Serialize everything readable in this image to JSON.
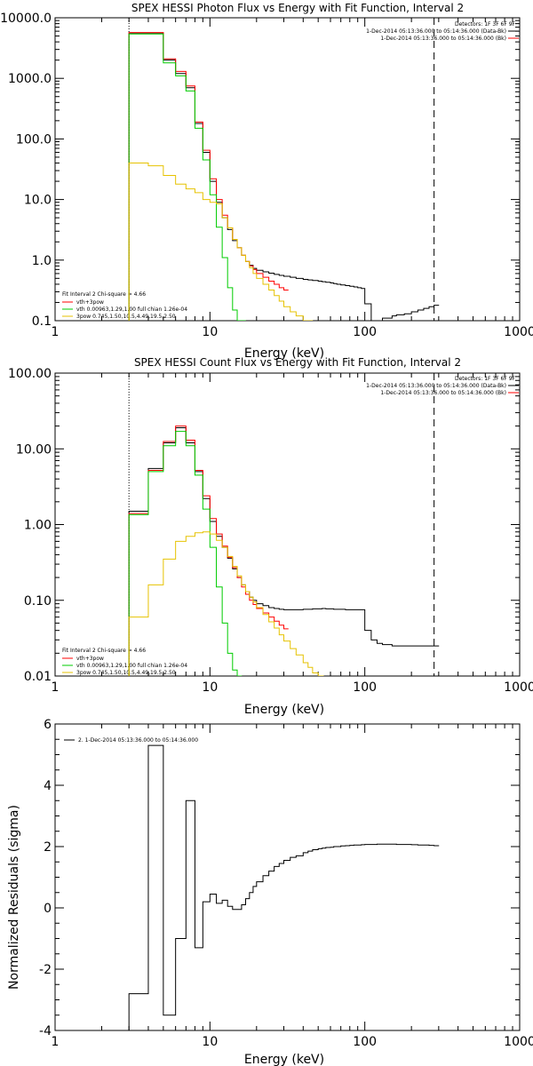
{
  "colors": {
    "background": "#ffffff",
    "axes": "#000000",
    "data": "#000000",
    "total": "#ff0000",
    "thermal": "#00cc00",
    "power_law": "#e6c200",
    "residuals": "#000000"
  },
  "chart_data": [
    {
      "type": "line",
      "title": "SPEX HESSI Photon Flux vs Energy with Fit Function, Interval 2",
      "xlabel": "Energy (keV)",
      "ylabel": "",
      "xscale": "log",
      "yscale": "log",
      "xlim": [
        1,
        1000
      ],
      "ylim": [
        0.1,
        10000
      ],
      "xticks": [
        1,
        10,
        100,
        1000
      ],
      "xtick_labels": [
        "1",
        "10",
        "100",
        "1000"
      ],
      "yticks": [
        0.1,
        1,
        10,
        100,
        1000,
        10000
      ],
      "ytick_labels": [
        "0.1",
        "1.0",
        "10.0",
        "100.0",
        "1000.0",
        "10000.0"
      ],
      "grid": false,
      "vlines": [
        {
          "x": 3,
          "style": "dotted"
        },
        {
          "x": 280,
          "style": "dashed"
        }
      ],
      "legend_topright": [
        "Detectors: 1F 3F 6F 9F",
        "1-Dec-2014 05:13:36.000 to 05:14:36.000 (Data-Bk)",
        "1-Dec-2014 05:13:36.000 to 05:14:36.000 (Bk)"
      ],
      "legend_bottomleft": [
        "Fit Interval 2   Chi-square = 4.66",
        "vth+3pow",
        "vth 0.00963,1.29,1.00  full chian 1.26e-04",
        "3pow 0.745,1.50,10.5,4.49,19.5,2.50"
      ],
      "series": [
        {
          "name": "data",
          "color": "#000000",
          "x": [
            3,
            4,
            5,
            6,
            7,
            8,
            9,
            10,
            11,
            12,
            13,
            14,
            15,
            16,
            17,
            18,
            19,
            20,
            22,
            24,
            26,
            28,
            30,
            33,
            36,
            40,
            43,
            46,
            50,
            53,
            56,
            60,
            63,
            66,
            70,
            75,
            80,
            85,
            90,
            95,
            100,
            110,
            120,
            130,
            140,
            150,
            160,
            180,
            200,
            220,
            240,
            260,
            280
          ],
          "y": [
            5600,
            5600,
            2000,
            1200,
            700,
            180,
            60,
            20,
            9,
            5,
            3.2,
            2.1,
            1.6,
            1.2,
            0.95,
            0.82,
            0.73,
            0.68,
            0.64,
            0.61,
            0.58,
            0.56,
            0.54,
            0.52,
            0.5,
            0.48,
            0.47,
            0.46,
            0.45,
            0.44,
            0.43,
            0.42,
            0.41,
            0.4,
            0.39,
            0.38,
            0.37,
            0.36,
            0.35,
            0.34,
            0.19,
            0.1,
            0.1,
            0.11,
            0.11,
            0.12,
            0.125,
            0.13,
            0.14,
            0.15,
            0.16,
            0.17,
            0.18
          ]
        },
        {
          "name": "vth+3pow",
          "color": "#ff0000",
          "x": [
            3,
            4,
            5,
            6,
            7,
            8,
            9,
            10,
            11,
            12,
            13,
            14,
            15,
            16,
            17,
            18,
            19,
            20,
            22,
            24,
            26,
            28,
            30
          ],
          "y": [
            5700,
            5700,
            2100,
            1300,
            750,
            190,
            65,
            22,
            10,
            5.5,
            3.4,
            2.2,
            1.6,
            1.2,
            0.95,
            0.8,
            0.7,
            0.6,
            0.52,
            0.45,
            0.4,
            0.35,
            0.32
          ]
        },
        {
          "name": "vth",
          "color": "#00cc00",
          "x": [
            3,
            4,
            5,
            6,
            7,
            8,
            9,
            10,
            11,
            12,
            13,
            14,
            15,
            16
          ],
          "y": [
            5400,
            5400,
            1800,
            1100,
            620,
            150,
            45,
            12,
            3.5,
            1.1,
            0.35,
            0.15,
            0.1,
            0.1
          ]
        },
        {
          "name": "3pow",
          "color": "#e6c200",
          "x": [
            3,
            4,
            5,
            6,
            7,
            8,
            9,
            10,
            11,
            12,
            13,
            14,
            15,
            16,
            17,
            18,
            19,
            20,
            22,
            24,
            26,
            28,
            30,
            33,
            36,
            40,
            43
          ],
          "y": [
            40,
            36,
            25,
            18,
            15,
            13,
            10,
            9,
            8.5,
            5,
            3.4,
            2.2,
            1.6,
            1.2,
            0.95,
            0.75,
            0.6,
            0.5,
            0.4,
            0.32,
            0.26,
            0.21,
            0.17,
            0.14,
            0.12,
            0.1,
            0.1
          ]
        }
      ]
    },
    {
      "type": "line",
      "title": "SPEX HESSI Count Flux vs Energy with Fit Function, Interval 2",
      "xlabel": "Energy (keV)",
      "ylabel": "",
      "xscale": "log",
      "yscale": "log",
      "xlim": [
        1,
        1000
      ],
      "ylim": [
        0.01,
        100
      ],
      "xticks": [
        1,
        10,
        100,
        1000
      ],
      "xtick_labels": [
        "1",
        "10",
        "100",
        "1000"
      ],
      "yticks": [
        0.01,
        0.1,
        1,
        10,
        100
      ],
      "ytick_labels": [
        "0.01",
        "0.10",
        "1.00",
        "10.00",
        "100.00"
      ],
      "grid": false,
      "vlines": [
        {
          "x": 3,
          "style": "dotted"
        },
        {
          "x": 280,
          "style": "dashed"
        }
      ],
      "legend_topright": [
        "Detectors: 1F 3F 6F 9F",
        "1-Dec-2014 05:13:36.000 to 05:14:36.000 (Data-Bk)",
        "1-Dec-2014 05:13:36.000 to 05:14:36.000 (Bk)"
      ],
      "legend_bottomleft": [
        "Fit Interval 2   Chi-square = 4.66",
        "vth+3pow",
        "vth 0.00963,1.29,1.00  full chian 1.26e-04",
        "3pow 0.745,1.50,10.5,4.49,19.5,2.50"
      ],
      "series": [
        {
          "name": "data",
          "color": "#000000",
          "x": [
            3,
            4,
            5,
            6,
            7,
            8,
            9,
            10,
            11,
            12,
            13,
            14,
            15,
            16,
            17,
            18,
            19,
            20,
            22,
            24,
            26,
            28,
            30,
            33,
            36,
            40,
            43,
            46,
            50,
            53,
            56,
            60,
            63,
            66,
            70,
            75,
            80,
            85,
            90,
            95,
            100,
            110,
            120,
            130,
            140,
            150,
            160,
            180,
            200,
            220,
            240,
            260,
            280
          ],
          "y": [
            1.5,
            5.5,
            12,
            19,
            12,
            5,
            2.2,
            1.1,
            0.7,
            0.5,
            0.36,
            0.26,
            0.2,
            0.16,
            0.13,
            0.11,
            0.1,
            0.09,
            0.085,
            0.08,
            0.078,
            0.076,
            0.075,
            0.075,
            0.075,
            0.076,
            0.076,
            0.077,
            0.077,
            0.078,
            0.077,
            0.077,
            0.076,
            0.076,
            0.076,
            0.075,
            0.075,
            0.075,
            0.075,
            0.075,
            0.04,
            0.03,
            0.027,
            0.026,
            0.026,
            0.025,
            0.025,
            0.025,
            0.025,
            0.025,
            0.025,
            0.025,
            0.025
          ]
        },
        {
          "name": "vth+3pow",
          "color": "#ff0000",
          "x": [
            3,
            4,
            5,
            6,
            7,
            8,
            9,
            10,
            11,
            12,
            13,
            14,
            15,
            16,
            17,
            18,
            19,
            20,
            22,
            24,
            26,
            28,
            30
          ],
          "y": [
            1.4,
            5.2,
            12.5,
            20,
            13,
            5.2,
            2.4,
            1.2,
            0.75,
            0.52,
            0.37,
            0.27,
            0.2,
            0.15,
            0.12,
            0.1,
            0.088,
            0.078,
            0.068,
            0.06,
            0.053,
            0.047,
            0.042
          ]
        },
        {
          "name": "vth",
          "color": "#00cc00",
          "x": [
            3,
            4,
            5,
            6,
            7,
            8,
            9,
            10,
            11,
            12,
            13,
            14,
            15
          ],
          "y": [
            1.35,
            5,
            11,
            17,
            11,
            4.5,
            1.6,
            0.5,
            0.15,
            0.05,
            0.02,
            0.012,
            0.01
          ]
        },
        {
          "name": "3pow",
          "color": "#e6c200",
          "x": [
            3,
            4,
            5,
            6,
            7,
            8,
            9,
            10,
            11,
            12,
            13,
            14,
            15,
            16,
            17,
            18,
            19,
            20,
            22,
            24,
            26,
            28,
            30,
            33,
            36,
            40,
            43,
            46,
            50
          ],
          "y": [
            0.06,
            0.16,
            0.35,
            0.6,
            0.7,
            0.78,
            0.8,
            0.75,
            0.62,
            0.5,
            0.38,
            0.28,
            0.21,
            0.16,
            0.13,
            0.11,
            0.095,
            0.08,
            0.065,
            0.052,
            0.043,
            0.035,
            0.029,
            0.023,
            0.019,
            0.015,
            0.013,
            0.011,
            0.01
          ]
        }
      ]
    },
    {
      "type": "line",
      "title": "",
      "xlabel": "Energy (keV)",
      "ylabel": "Normalized Residuals (sigma)",
      "xscale": "log",
      "yscale": "linear",
      "xlim": [
        1,
        1000
      ],
      "ylim": [
        -4,
        6
      ],
      "xticks": [
        1,
        10,
        100,
        1000
      ],
      "xtick_labels": [
        "1",
        "10",
        "100",
        "1000"
      ],
      "yticks": [
        -4,
        -2,
        0,
        2,
        4,
        6
      ],
      "ytick_labels": [
        "-4",
        "-2",
        "0",
        "2",
        "4",
        "6"
      ],
      "grid": false,
      "legend_topleft": [
        "2.  1-Dec-2014 05:13:36.000 to 05:14:36.000"
      ],
      "series": [
        {
          "name": "residuals",
          "color": "#000000",
          "x": [
            3,
            4,
            5,
            6,
            7,
            8,
            9,
            10,
            11,
            12,
            13,
            14,
            15,
            16,
            17,
            18,
            19,
            20,
            22,
            24,
            26,
            28,
            30,
            33,
            36,
            40,
            43,
            46,
            50,
            53,
            56,
            60,
            63,
            66,
            70,
            75,
            80,
            85,
            90,
            95,
            100,
            110,
            120,
            130,
            140,
            150,
            160,
            180,
            200,
            220,
            240,
            260,
            280
          ],
          "y": [
            -2.8,
            5.3,
            -3.5,
            -1.0,
            3.5,
            -1.3,
            0.2,
            0.45,
            0.15,
            0.25,
            0.05,
            -0.05,
            -0.05,
            0.1,
            0.3,
            0.5,
            0.7,
            0.85,
            1.05,
            1.2,
            1.35,
            1.45,
            1.55,
            1.65,
            1.7,
            1.8,
            1.85,
            1.9,
            1.93,
            1.95,
            1.97,
            1.98,
            2.0,
            2.0,
            2.02,
            2.03,
            2.04,
            2.05,
            2.05,
            2.06,
            2.07,
            2.07,
            2.08,
            2.08,
            2.08,
            2.08,
            2.07,
            2.07,
            2.06,
            2.05,
            2.05,
            2.04,
            2.03
          ]
        }
      ]
    }
  ]
}
